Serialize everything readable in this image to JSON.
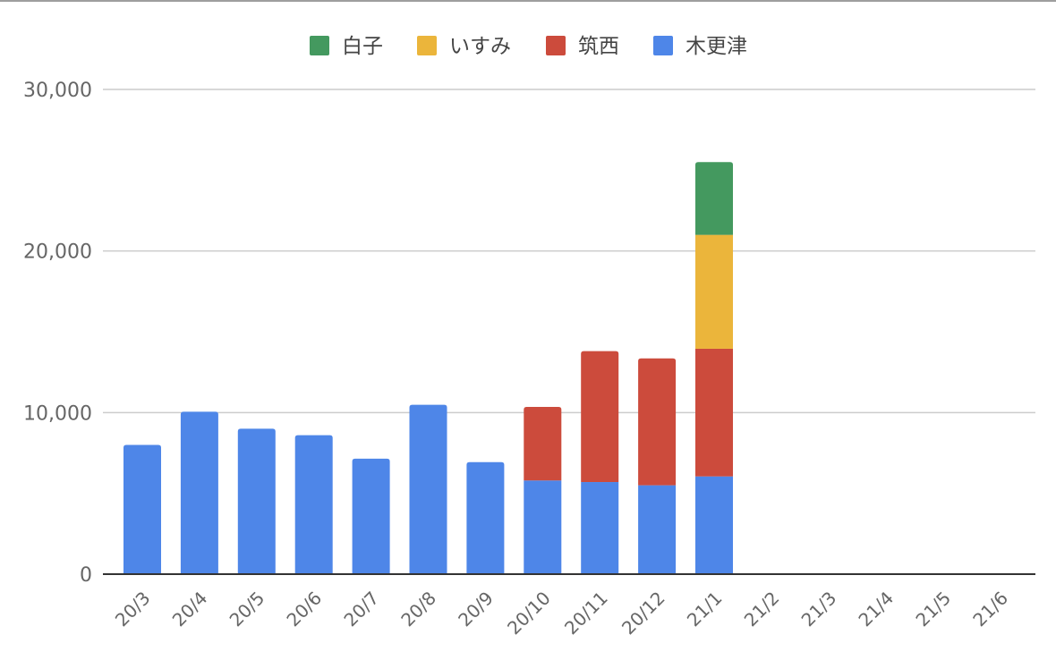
{
  "chart_data": {
    "type": "bar",
    "stacked": true,
    "categories": [
      "20/3",
      "20/4",
      "20/5",
      "20/6",
      "20/7",
      "20/8",
      "20/9",
      "20/10",
      "20/11",
      "20/12",
      "21/1",
      "21/2",
      "21/3",
      "21/4",
      "21/5",
      "21/6"
    ],
    "series": [
      {
        "name": "木更津",
        "color": "#4e86e8",
        "values": [
          8000,
          10050,
          9000,
          8600,
          7150,
          10480,
          6930,
          5800,
          5700,
          5500,
          6050,
          0,
          0,
          0,
          0,
          0
        ]
      },
      {
        "name": "筑西",
        "color": "#cc4b3c",
        "values": [
          0,
          0,
          0,
          0,
          0,
          0,
          0,
          4550,
          8100,
          7850,
          7900,
          0,
          0,
          0,
          0,
          0
        ]
      },
      {
        "name": "いすみ",
        "color": "#ebb53b",
        "values": [
          0,
          0,
          0,
          0,
          0,
          0,
          0,
          0,
          0,
          0,
          7050,
          0,
          0,
          0,
          0,
          0
        ]
      },
      {
        "name": "白子",
        "color": "#44995f",
        "values": [
          0,
          0,
          0,
          0,
          0,
          0,
          0,
          0,
          0,
          0,
          4500,
          0,
          0,
          0,
          0,
          0
        ]
      }
    ],
    "legend_order": [
      "白子",
      "いすみ",
      "筑西",
      "木更津"
    ],
    "legend_position": "top",
    "ylim": [
      0,
      30000
    ],
    "yticks": [
      0,
      10000,
      20000,
      30000
    ],
    "ytick_labels": [
      "0",
      "10,000",
      "20,000",
      "30,000"
    ],
    "grid": true,
    "title": "",
    "xlabel": "",
    "ylabel": ""
  }
}
